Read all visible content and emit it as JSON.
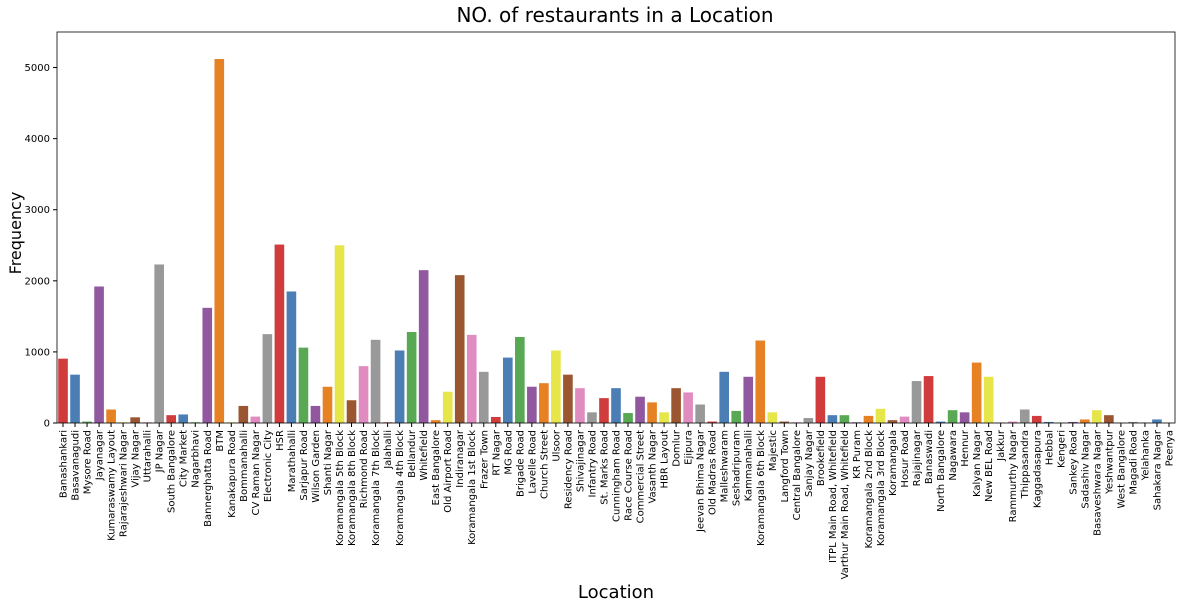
{
  "chart_data": {
    "type": "bar",
    "title": "NO. of restaurants in a Location",
    "x_label": "Location",
    "y_label": "Frequency",
    "categories": [
      "Banashankari",
      "Basavanagudi",
      "Mysore Road",
      "Jayanagar",
      "Kumaraswamy Layout",
      "Rajarajeshwari Nagar",
      "Vijay Nagar",
      "Uttarahalli",
      "JP Nagar",
      "South Bangalore",
      "City Market",
      "Nagarbhavi",
      "Bannerghatta Road",
      "BTM",
      "Kanakapura Road",
      "Bommanahalli",
      "CV Raman Nagar",
      "Electronic City",
      "HSR",
      "Marathahalli",
      "Sarjapur Road",
      "Wilson Garden",
      "Shanti Nagar",
      "Koramangala 5th Block",
      "Koramangala 8th Block",
      "Richmond Road",
      "Koramangala 7th Block",
      "Jalahalli",
      "Koramangala 4th Block",
      "Bellandur",
      "Whitefield",
      "East Bangalore",
      "Old Airport Road",
      "Indiranagar",
      "Koramangala 1st Block",
      "Frazer Town",
      "RT Nagar",
      "MG Road",
      "Brigade Road",
      "Lavelle Road",
      "Church Street",
      "Ulsoor",
      "Residency Road",
      "Shivajinagar",
      "Infantry Road",
      "St. Marks Road",
      "Cunningham Road",
      "Race Course Road",
      "Commercial Street",
      "Vasanth Nagar",
      "HBR Layout",
      "Domlur",
      "Ejipura",
      "Jeevan Bhima Nagar",
      "Old Madras Road",
      "Malleshwaram",
      "Seshadripuram",
      "Kammanahalli",
      "Koramangala 6th Block",
      "Majestic",
      "Langford Town",
      "Central Bangalore",
      "Sanjay Nagar",
      "Brookefield",
      "ITPL Main Road, Whitefield",
      "Varthur Main Road, Whitefield",
      "KR Puram",
      "Koramangala 2nd Block",
      "Koramangala 3rd Block",
      "Koramangala",
      "Hosur Road",
      "Rajajinagar",
      "Banaswadi",
      "North Bangalore",
      "Nagawara",
      "Hennur",
      "Kalyan Nagar",
      "New BEL Road",
      "Jakkur",
      "Rammurthy Nagar",
      "Thippasandra",
      "Kaggadasapura",
      "Hebbal",
      "Kengeri",
      "Sankey Road",
      "Sadashiv Nagar",
      "Basaveshwara Nagar",
      "Yeshwantpur",
      "West Bangalore",
      "Magadi Road",
      "Yelahanka",
      "Sahakara Nagar",
      "Peenya"
    ],
    "values": [
      905,
      680,
      20,
      1920,
      190,
      10,
      80,
      10,
      2230,
      110,
      120,
      10,
      1620,
      5120,
      10,
      240,
      90,
      1250,
      2510,
      1850,
      1060,
      240,
      510,
      2500,
      320,
      800,
      1170,
      10,
      1020,
      1280,
      2150,
      40,
      440,
      2080,
      1240,
      720,
      85,
      920,
      1210,
      510,
      560,
      1020,
      680,
      490,
      150,
      350,
      490,
      140,
      370,
      290,
      150,
      490,
      430,
      260,
      20,
      720,
      170,
      650,
      1160,
      150,
      20,
      10,
      70,
      650,
      110,
      110,
      10,
      100,
      200,
      40,
      90,
      590,
      660,
      20,
      180,
      150,
      850,
      650,
      5,
      20,
      190,
      100,
      15,
      5,
      15,
      50,
      180,
      110,
      5,
      15,
      5,
      50,
      5
    ],
    "palette": [
      "#d03b3b",
      "#4a7eb5",
      "#58a854",
      "#9158a0",
      "#e68124",
      "#e6e54a",
      "#9b5631",
      "#e08cc0",
      "#999999"
    ],
    "ylim": [
      0,
      5500
    ],
    "yticks": [
      0,
      1000,
      2000,
      3000,
      4000,
      5000
    ]
  }
}
